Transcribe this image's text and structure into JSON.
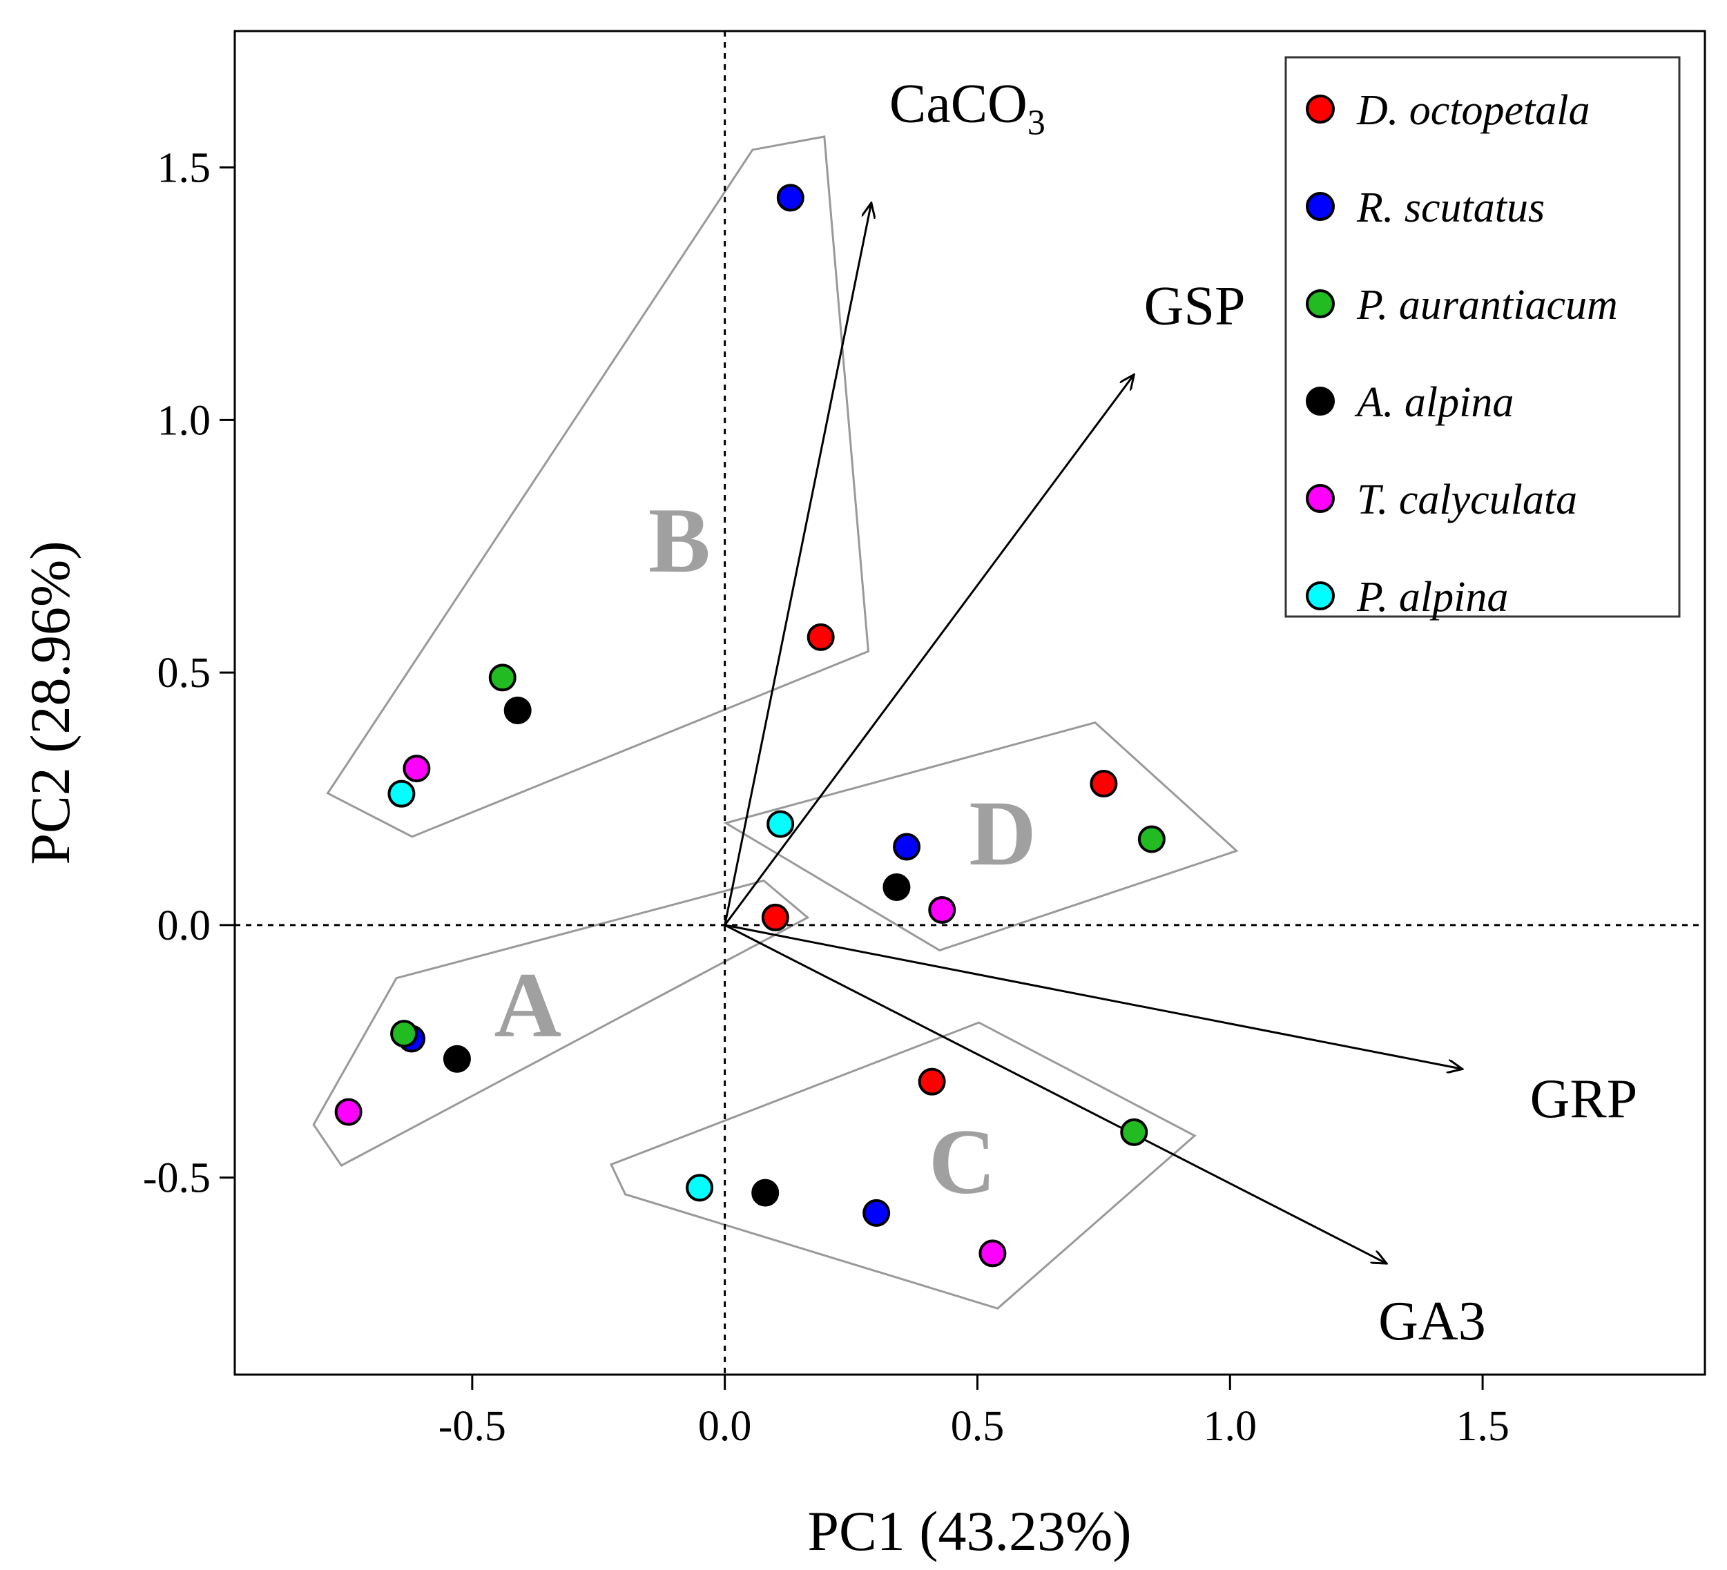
{
  "chart_data": {
    "type": "scatter",
    "title": "",
    "xlabel": "PC1 (43.23%)",
    "ylabel": "PC2 (28.96%)",
    "xlim": [
      -0.97,
      1.94
    ],
    "ylim": [
      -0.89,
      1.77
    ],
    "xticks": [
      -0.5,
      0.0,
      0.5,
      1.0,
      1.5
    ],
    "xtick_labels": [
      "-0.5",
      "0.0",
      "0.5",
      "1.0",
      "1.5"
    ],
    "yticks": [
      -0.5,
      0.0,
      0.5,
      1.0,
      1.5
    ],
    "ytick_labels": [
      "-0.5",
      "0.0",
      "0.5",
      "1.0",
      "1.5"
    ],
    "grid": false,
    "legend_position": "top-right",
    "series": [
      {
        "name": "D. octopetala",
        "color": "#ff0000",
        "points": [
          [
            0.19,
            0.57
          ],
          [
            0.75,
            0.28
          ],
          [
            0.1,
            0.015
          ],
          [
            0.41,
            -0.31
          ]
        ]
      },
      {
        "name": "R. scutatus",
        "color": "#0000ff",
        "points": [
          [
            0.13,
            1.44
          ],
          [
            0.36,
            0.155
          ],
          [
            -0.62,
            -0.225
          ],
          [
            0.3,
            -0.57
          ]
        ]
      },
      {
        "name": "P. aurantiacum",
        "color": "#22bb22",
        "points": [
          [
            -0.44,
            0.49
          ],
          [
            0.845,
            0.17
          ],
          [
            -0.635,
            -0.215
          ],
          [
            0.81,
            -0.41
          ]
        ]
      },
      {
        "name": "A. alpina",
        "color": "#000000",
        "points": [
          [
            -0.41,
            0.425
          ],
          [
            0.34,
            0.075
          ],
          [
            -0.53,
            -0.265
          ],
          [
            0.08,
            -0.53
          ]
        ]
      },
      {
        "name": "T. calyculata",
        "color": "#ff00ff",
        "points": [
          [
            -0.61,
            0.31
          ],
          [
            0.43,
            0.03
          ],
          [
            -0.745,
            -0.37
          ],
          [
            0.53,
            -0.65
          ]
        ]
      },
      {
        "name": "P. alpina",
        "color": "#00ffff",
        "points": [
          [
            -0.64,
            0.26
          ],
          [
            0.11,
            0.2
          ],
          [
            -0.05,
            -0.52
          ]
        ]
      }
    ],
    "vectors": [
      {
        "label": "CaCO",
        "sub": "3",
        "end": [
          0.29,
          1.43
        ],
        "label_at": [
          0.48,
          1.59
        ]
      },
      {
        "label": "GSP",
        "sub": "",
        "end": [
          0.81,
          1.09
        ],
        "label_at": [
          0.93,
          1.19
        ]
      },
      {
        "label": "GRP",
        "sub": "",
        "end": [
          1.46,
          -0.285
        ],
        "label_at": [
          1.7,
          -0.38
        ]
      },
      {
        "label": "GA3",
        "sub": "",
        "end": [
          1.31,
          -0.67
        ],
        "label_at": [
          1.4,
          -0.82
        ]
      }
    ],
    "groups": [
      {
        "label": "B",
        "label_at": [
          -0.09,
          0.7
        ],
        "hull": [
          [
            0.055,
            1.535
          ],
          [
            0.197,
            1.561
          ],
          [
            0.284,
            0.542
          ],
          [
            -0.619,
            0.175
          ],
          [
            -0.786,
            0.261
          ]
        ]
      },
      {
        "label": "D",
        "label_at": [
          0.55,
          0.12
        ],
        "hull": [
          [
            0.002,
            0.202
          ],
          [
            0.733,
            0.401
          ],
          [
            1.013,
            0.147
          ],
          [
            0.425,
            -0.05
          ]
        ]
      },
      {
        "label": "A",
        "label_at": [
          -0.39,
          -0.22
        ],
        "hull": [
          [
            -0.65,
            -0.105
          ],
          [
            0.077,
            0.088
          ],
          [
            0.164,
            0.015
          ],
          [
            -0.759,
            -0.476
          ],
          [
            -0.814,
            -0.395
          ]
        ]
      },
      {
        "label": "C",
        "label_at": [
          0.47,
          -0.53
        ],
        "hull": [
          [
            -0.225,
            -0.474
          ],
          [
            0.503,
            -0.193
          ],
          [
            0.93,
            -0.417
          ],
          [
            0.54,
            -0.759
          ],
          [
            -0.197,
            -0.533
          ]
        ]
      }
    ]
  }
}
